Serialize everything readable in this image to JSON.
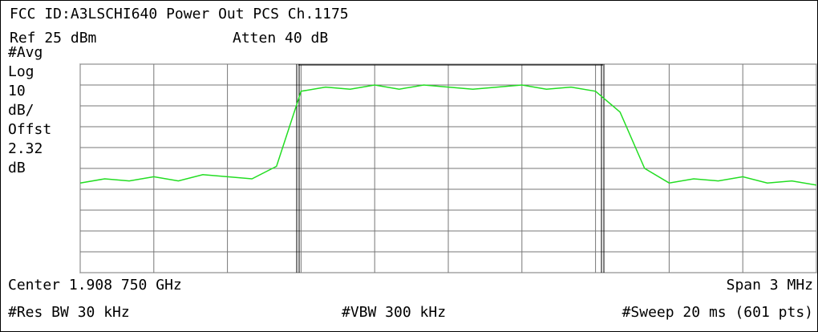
{
  "chart_data": {
    "type": "line",
    "title": "FCC ID:A3LSCHI640 Power Out PCS Ch.1175",
    "ref": "Ref 25 dBm",
    "atten": "Atten 40 dB",
    "side_labels": [
      "#Avg",
      "Log",
      "10",
      "dB/",
      "Offst",
      "2.32",
      "dB"
    ],
    "center": "Center 1.908 750 GHz",
    "span": "Span 3 MHz",
    "res_bw": "#Res BW 30 kHz",
    "vbw": "#VBW 300 kHz",
    "sweep": "#Sweep 20 ms (601 pts)",
    "x": [
      1907.25,
      1907.35,
      1907.45,
      1907.55,
      1907.65,
      1907.75,
      1907.85,
      1907.95,
      1908.05,
      1908.15,
      1908.25,
      1908.35,
      1908.45,
      1908.55,
      1908.65,
      1908.75,
      1908.85,
      1908.95,
      1909.05,
      1909.15,
      1909.25,
      1909.35,
      1909.45,
      1909.55,
      1909.65,
      1909.75,
      1909.85,
      1909.95,
      1910.05,
      1910.15,
      1910.25
    ],
    "values": [
      -32,
      -30,
      -31,
      -29,
      -31,
      -28,
      -29,
      -30,
      -24,
      12,
      14,
      13,
      15,
      13,
      15,
      14,
      13,
      14,
      15,
      13,
      14,
      12,
      2,
      -25,
      -32,
      -30,
      -31,
      -29,
      -32,
      -31,
      -33
    ],
    "color": "#22dd22",
    "xlim": [
      1907.25,
      1910.25
    ],
    "xticks": [
      1907.25,
      1907.55,
      1907.85,
      1908.15,
      1908.45,
      1908.75,
      1909.05,
      1909.35,
      1909.65,
      1909.95,
      1910.25
    ],
    "ylim": [
      -75,
      25
    ],
    "yticks": [
      -75,
      -65,
      -55,
      -45,
      -35,
      -25,
      -15,
      -5,
      5,
      15,
      25
    ],
    "grid": true
  }
}
